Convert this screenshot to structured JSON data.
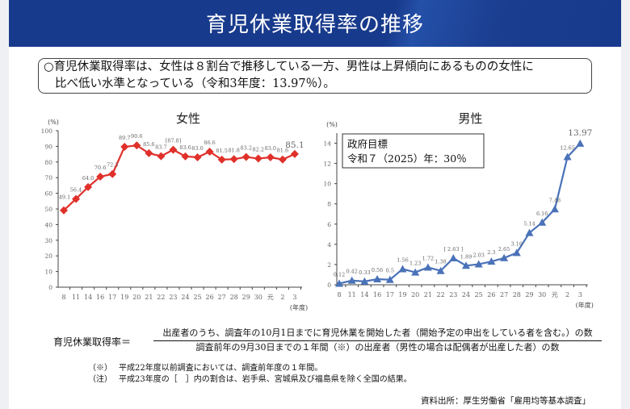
{
  "header": {
    "title": "育児休業取得率の推移"
  },
  "summary": {
    "line1": "○育児休業取得率は、女性は８割台で推移している一方、男性は上昇傾向にあるものの女性に",
    "line2": "比べ低い水準となっている（令和3年度：13.97％）。"
  },
  "chart_data": [
    {
      "type": "line",
      "title": "女性",
      "ylabel": "(%)",
      "xlabel": "(年度)",
      "categories": [
        "8",
        "11",
        "14",
        "16",
        "17",
        "19",
        "20",
        "21",
        "22",
        "23",
        "24",
        "25",
        "26",
        "27",
        "28",
        "29",
        "30",
        "元",
        "2",
        "3"
      ],
      "values": [
        49.1,
        56.4,
        64.0,
        70.6,
        72.3,
        89.7,
        90.6,
        85.6,
        83.7,
        87.8,
        83.6,
        83.0,
        86.6,
        81.5,
        81.8,
        83.2,
        82.2,
        83.0,
        81.6,
        85.1
      ],
      "data_labels": [
        "49.1",
        "56.4",
        "64.0",
        "70.6",
        "72.3",
        "89.7",
        "90.6",
        "85.6",
        "83.7",
        "[87.8]",
        "83.6",
        "83.0",
        "86.6",
        "81.5",
        "81.8",
        "83.2",
        "82.2",
        "83.0",
        "81.6",
        "85.1"
      ],
      "yticks": [
        "0",
        "10",
        "20",
        "30",
        "40",
        "50",
        "60",
        "70",
        "80",
        "90",
        "100"
      ],
      "ylim": [
        0,
        100
      ],
      "color": "#e0302a",
      "marker": "diamond"
    },
    {
      "type": "line",
      "title": "男性",
      "ylabel": "(%)",
      "xlabel": "(年度)",
      "categories": [
        "8",
        "11",
        "14",
        "16",
        "17",
        "19",
        "20",
        "21",
        "22",
        "23",
        "24",
        "25",
        "26",
        "27",
        "28",
        "29",
        "30",
        "元",
        "2",
        "3"
      ],
      "values": [
        0.12,
        0.42,
        0.33,
        0.56,
        0.5,
        1.56,
        1.23,
        1.72,
        1.38,
        2.63,
        1.89,
        2.03,
        2.3,
        2.65,
        3.16,
        5.14,
        6.16,
        7.48,
        12.65,
        13.97
      ],
      "data_labels": [
        "0.12",
        "0.42",
        "0.33",
        "0.56",
        "0.5",
        "1.56",
        "1.23",
        "1.72",
        "1.38",
        "[ 2.63 ]",
        "1.89",
        "2.03",
        "2.3",
        "2.65",
        "3.16",
        "5.14",
        "6.16",
        "7.48",
        "12.65",
        "13.97"
      ],
      "yticks": [
        "0",
        "2",
        "4",
        "6",
        "8",
        "10",
        "12",
        "14"
      ],
      "ylim": [
        0,
        15
      ],
      "color": "#4a72b8",
      "marker": "triangle",
      "annotation": {
        "line1": "政府目標",
        "line2": "令和７（2025）年：30％"
      }
    }
  ],
  "formula": {
    "lhs": "育児休業取得率＝",
    "numerator": "出産者のうち、調査年の10月1日までに育児休業を開始した者（開始予定の申出をしている者を含む。）の数",
    "denominator": "調査前年の9月30日までの１年間（※）の出産者（男性の場合は配偶者が出産した者）の数"
  },
  "notes": [
    {
      "mark": "（※）",
      "text": "平成22年度以前調査においては、調査前年度の１年間。"
    },
    {
      "mark": "（注）",
      "text": "平成23年度の［　］内の割合は、岩手県、宮城県及び福島県を除く全国の結果。"
    }
  ],
  "source": "資料出所：厚生労働省「雇用均等基本調査」"
}
